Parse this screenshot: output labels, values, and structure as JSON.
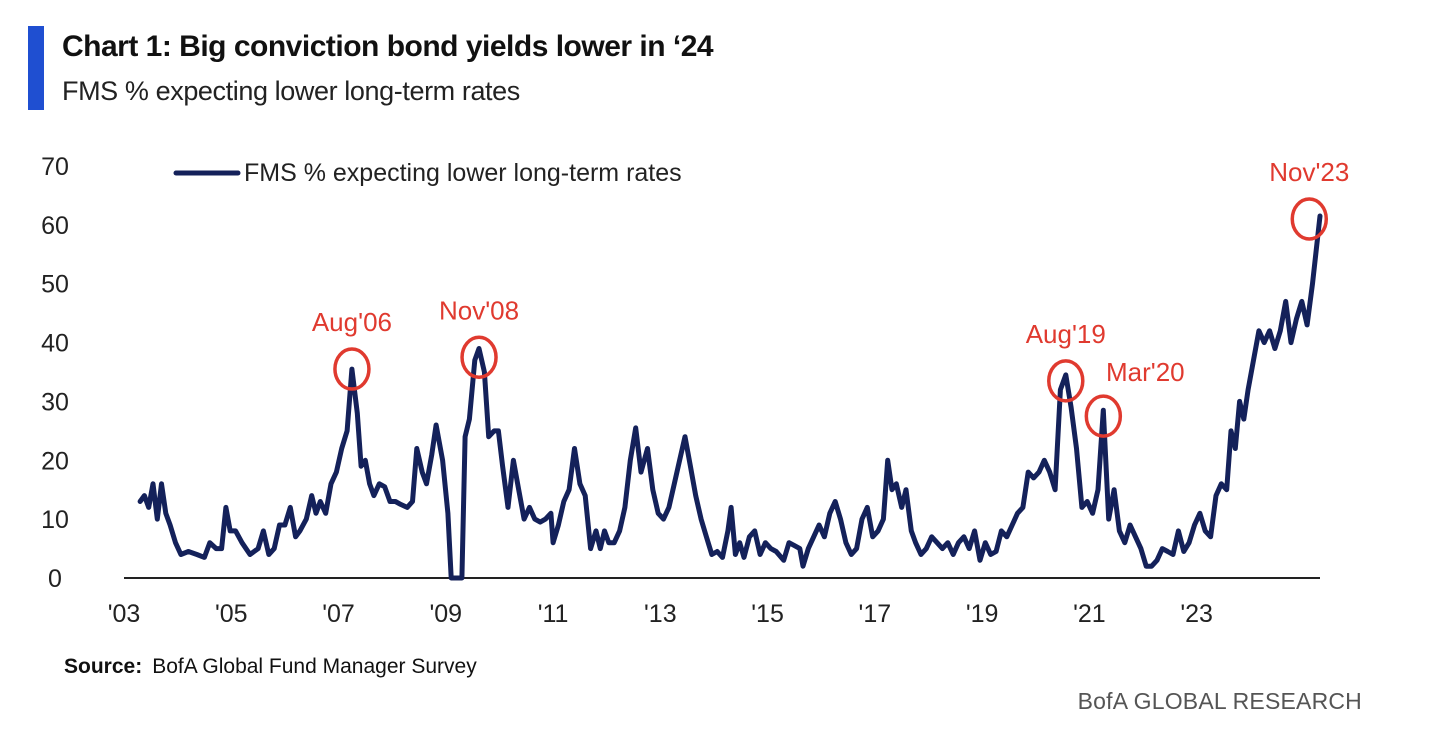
{
  "title": "Chart 1: Big conviction bond yields lower in ‘24",
  "subtitle": "FMS % expecting lower long-term rates",
  "source_label": "Source:",
  "source_text": "BofA Global Fund Manager Survey",
  "footer": "BofA GLOBAL RESEARCH",
  "colors": {
    "line": "#14215a",
    "annotation": "#e03a2f",
    "accent": "#1f4fd1",
    "axis": "#222222"
  },
  "chart_data": {
    "type": "line",
    "x_unit": "year",
    "ylim": [
      0,
      70
    ],
    "yticks": [
      0,
      10,
      20,
      30,
      40,
      50,
      60,
      70
    ],
    "xlim": [
      2003.0,
      2025.3
    ],
    "xticks": [
      {
        "label": "'03",
        "x": 2003.0
      },
      {
        "label": "'05",
        "x": 2005.0
      },
      {
        "label": "'07",
        "x": 2007.0
      },
      {
        "label": "'09",
        "x": 2009.0
      },
      {
        "label": "'11",
        "x": 2011.0
      },
      {
        "label": "'13",
        "x": 2013.0
      },
      {
        "label": "'15",
        "x": 2015.0
      },
      {
        "label": "'17",
        "x": 2017.0
      },
      {
        "label": "'19",
        "x": 2019.0
      },
      {
        "label": "'21",
        "x": 2021.0
      },
      {
        "label": "'23",
        "x": 2023.0
      }
    ],
    "legend": {
      "position": "top-left"
    },
    "series": [
      {
        "name": "FMS % expecting lower long-term rates",
        "points": [
          [
            2003.3,
            13
          ],
          [
            2003.38,
            14
          ],
          [
            2003.46,
            12
          ],
          [
            2003.54,
            16
          ],
          [
            2003.62,
            10
          ],
          [
            2003.7,
            16
          ],
          [
            2003.78,
            11
          ],
          [
            2003.86,
            9
          ],
          [
            2003.96,
            6
          ],
          [
            2004.06,
            4
          ],
          [
            2004.2,
            4.5
          ],
          [
            2004.36,
            4
          ],
          [
            2004.5,
            3.5
          ],
          [
            2004.6,
            6
          ],
          [
            2004.72,
            5
          ],
          [
            2004.82,
            5
          ],
          [
            2004.9,
            12
          ],
          [
            2004.98,
            8
          ],
          [
            2005.08,
            8
          ],
          [
            2005.2,
            6
          ],
          [
            2005.35,
            4
          ],
          [
            2005.5,
            5
          ],
          [
            2005.6,
            8
          ],
          [
            2005.7,
            4
          ],
          [
            2005.8,
            5
          ],
          [
            2005.9,
            9
          ],
          [
            2006.0,
            9
          ],
          [
            2006.1,
            12
          ],
          [
            2006.2,
            7
          ],
          [
            2006.28,
            8
          ],
          [
            2006.4,
            10
          ],
          [
            2006.5,
            14
          ],
          [
            2006.58,
            11
          ],
          [
            2006.66,
            13
          ],
          [
            2006.76,
            11
          ],
          [
            2006.86,
            16
          ],
          [
            2006.96,
            18
          ],
          [
            2007.06,
            22
          ],
          [
            2007.16,
            25
          ],
          [
            2007.25,
            35.5
          ],
          [
            2007.35,
            28
          ],
          [
            2007.42,
            19
          ],
          [
            2007.5,
            20
          ],
          [
            2007.58,
            16
          ],
          [
            2007.66,
            14
          ],
          [
            2007.76,
            16
          ],
          [
            2007.86,
            15.5
          ],
          [
            2007.96,
            13
          ],
          [
            2008.06,
            13
          ],
          [
            2008.16,
            12.5
          ],
          [
            2008.28,
            12
          ],
          [
            2008.38,
            13
          ],
          [
            2008.46,
            22
          ],
          [
            2008.56,
            18
          ],
          [
            2008.64,
            16
          ],
          [
            2008.74,
            21
          ],
          [
            2008.82,
            26
          ],
          [
            2008.94,
            20
          ],
          [
            2009.04,
            11
          ],
          [
            2009.1,
            0
          ],
          [
            2009.3,
            0
          ],
          [
            2009.36,
            24
          ],
          [
            2009.44,
            27
          ],
          [
            2009.54,
            37
          ],
          [
            2009.62,
            39
          ],
          [
            2009.72,
            35
          ],
          [
            2009.8,
            24
          ],
          [
            2009.9,
            25
          ],
          [
            2009.98,
            25
          ],
          [
            2010.06,
            19
          ],
          [
            2010.16,
            12
          ],
          [
            2010.26,
            20
          ],
          [
            2010.36,
            15
          ],
          [
            2010.46,
            10
          ],
          [
            2010.56,
            12
          ],
          [
            2010.66,
            10
          ],
          [
            2010.76,
            9.5
          ],
          [
            2010.86,
            10
          ],
          [
            2010.96,
            11
          ],
          [
            2011.0,
            6
          ],
          [
            2011.1,
            9
          ],
          [
            2011.2,
            13
          ],
          [
            2011.3,
            15
          ],
          [
            2011.4,
            22
          ],
          [
            2011.5,
            16
          ],
          [
            2011.6,
            14
          ],
          [
            2011.7,
            5
          ],
          [
            2011.8,
            8
          ],
          [
            2011.88,
            5
          ],
          [
            2011.96,
            8
          ],
          [
            2012.04,
            6
          ],
          [
            2012.14,
            6
          ],
          [
            2012.24,
            8
          ],
          [
            2012.34,
            12
          ],
          [
            2012.44,
            20
          ],
          [
            2012.54,
            25.5
          ],
          [
            2012.64,
            18
          ],
          [
            2012.76,
            22
          ],
          [
            2012.86,
            15
          ],
          [
            2012.96,
            11
          ],
          [
            2013.06,
            10
          ],
          [
            2013.16,
            12
          ],
          [
            2013.26,
            16
          ],
          [
            2013.36,
            20
          ],
          [
            2013.46,
            24
          ],
          [
            2013.56,
            19
          ],
          [
            2013.66,
            14
          ],
          [
            2013.76,
            10
          ],
          [
            2013.86,
            7
          ],
          [
            2013.96,
            4
          ],
          [
            2014.06,
            4.5
          ],
          [
            2014.16,
            3.5
          ],
          [
            2014.26,
            8
          ],
          [
            2014.32,
            12
          ],
          [
            2014.4,
            4
          ],
          [
            2014.48,
            6
          ],
          [
            2014.56,
            3.5
          ],
          [
            2014.66,
            7
          ],
          [
            2014.76,
            8
          ],
          [
            2014.86,
            4
          ],
          [
            2014.96,
            6
          ],
          [
            2015.06,
            5
          ],
          [
            2015.16,
            4.5
          ],
          [
            2015.3,
            3
          ],
          [
            2015.4,
            6
          ],
          [
            2015.5,
            5.5
          ],
          [
            2015.6,
            5
          ],
          [
            2015.66,
            2
          ],
          [
            2015.76,
            5
          ],
          [
            2015.86,
            7
          ],
          [
            2015.96,
            9
          ],
          [
            2016.06,
            7
          ],
          [
            2016.16,
            11
          ],
          [
            2016.26,
            13
          ],
          [
            2016.36,
            10
          ],
          [
            2016.46,
            6
          ],
          [
            2016.56,
            4
          ],
          [
            2016.66,
            5
          ],
          [
            2016.76,
            10
          ],
          [
            2016.86,
            12
          ],
          [
            2016.96,
            7
          ],
          [
            2017.06,
            8
          ],
          [
            2017.16,
            10
          ],
          [
            2017.24,
            20
          ],
          [
            2017.32,
            15
          ],
          [
            2017.4,
            16
          ],
          [
            2017.5,
            12
          ],
          [
            2017.58,
            15
          ],
          [
            2017.68,
            8
          ],
          [
            2017.76,
            6
          ],
          [
            2017.86,
            4
          ],
          [
            2017.96,
            5
          ],
          [
            2018.06,
            7
          ],
          [
            2018.16,
            6
          ],
          [
            2018.26,
            5
          ],
          [
            2018.36,
            6
          ],
          [
            2018.46,
            4
          ],
          [
            2018.56,
            6
          ],
          [
            2018.66,
            7
          ],
          [
            2018.76,
            5
          ],
          [
            2018.86,
            8
          ],
          [
            2018.96,
            3
          ],
          [
            2019.06,
            6
          ],
          [
            2019.16,
            4
          ],
          [
            2019.26,
            4.5
          ],
          [
            2019.36,
            8
          ],
          [
            2019.46,
            7
          ],
          [
            2019.56,
            9
          ],
          [
            2019.66,
            11
          ],
          [
            2019.76,
            12
          ],
          [
            2019.86,
            18
          ],
          [
            2019.96,
            17
          ],
          [
            2020.06,
            18
          ],
          [
            2020.16,
            20
          ],
          [
            2020.26,
            18
          ],
          [
            2020.36,
            15
          ],
          [
            2020.46,
            32
          ],
          [
            2020.56,
            34.5
          ],
          [
            2020.66,
            29
          ],
          [
            2020.76,
            22
          ],
          [
            2020.86,
            12
          ],
          [
            2020.96,
            13
          ],
          [
            2021.06,
            11
          ],
          [
            2021.16,
            15
          ],
          [
            2021.26,
            28.5
          ],
          [
            2021.36,
            10
          ],
          [
            2021.46,
            15
          ],
          [
            2021.56,
            8
          ],
          [
            2021.66,
            6
          ],
          [
            2021.76,
            9
          ],
          [
            2021.86,
            7
          ],
          [
            2021.96,
            5
          ],
          [
            2022.06,
            2
          ],
          [
            2022.16,
            2
          ],
          [
            2022.26,
            3
          ],
          [
            2022.36,
            5
          ],
          [
            2022.46,
            4.5
          ],
          [
            2022.56,
            4
          ],
          [
            2022.66,
            8
          ],
          [
            2022.76,
            4.5
          ],
          [
            2022.86,
            6
          ],
          [
            2022.96,
            9
          ],
          [
            2023.06,
            11
          ],
          [
            2023.16,
            8
          ],
          [
            2023.26,
            7
          ],
          [
            2023.36,
            14
          ],
          [
            2023.46,
            16
          ],
          [
            2023.56,
            15
          ],
          [
            2023.64,
            25
          ],
          [
            2023.72,
            22
          ],
          [
            2023.8,
            30
          ],
          [
            2023.88,
            27
          ],
          [
            2023.96,
            32
          ],
          [
            2024.06,
            37
          ],
          [
            2024.16,
            42
          ],
          [
            2024.26,
            40
          ],
          [
            2024.36,
            42
          ],
          [
            2024.46,
            39
          ],
          [
            2024.56,
            42
          ],
          [
            2024.66,
            47
          ],
          [
            2024.76,
            40
          ],
          [
            2024.86,
            44
          ],
          [
            2024.96,
            47
          ],
          [
            2025.06,
            43
          ],
          [
            2025.16,
            50
          ],
          [
            2025.3,
            61.5
          ]
        ]
      }
    ],
    "annotations": [
      {
        "label": "Aug'06",
        "x": 2007.25,
        "y": 35.5
      },
      {
        "label": "Nov'08",
        "x": 2009.62,
        "y": 37.5
      },
      {
        "label": "Aug'19",
        "x": 2020.56,
        "y": 33.5
      },
      {
        "label": "Mar'20",
        "x": 2021.26,
        "y": 27.5
      },
      {
        "label": "Nov'23",
        "x": 2025.1,
        "y": 61
      }
    ]
  }
}
